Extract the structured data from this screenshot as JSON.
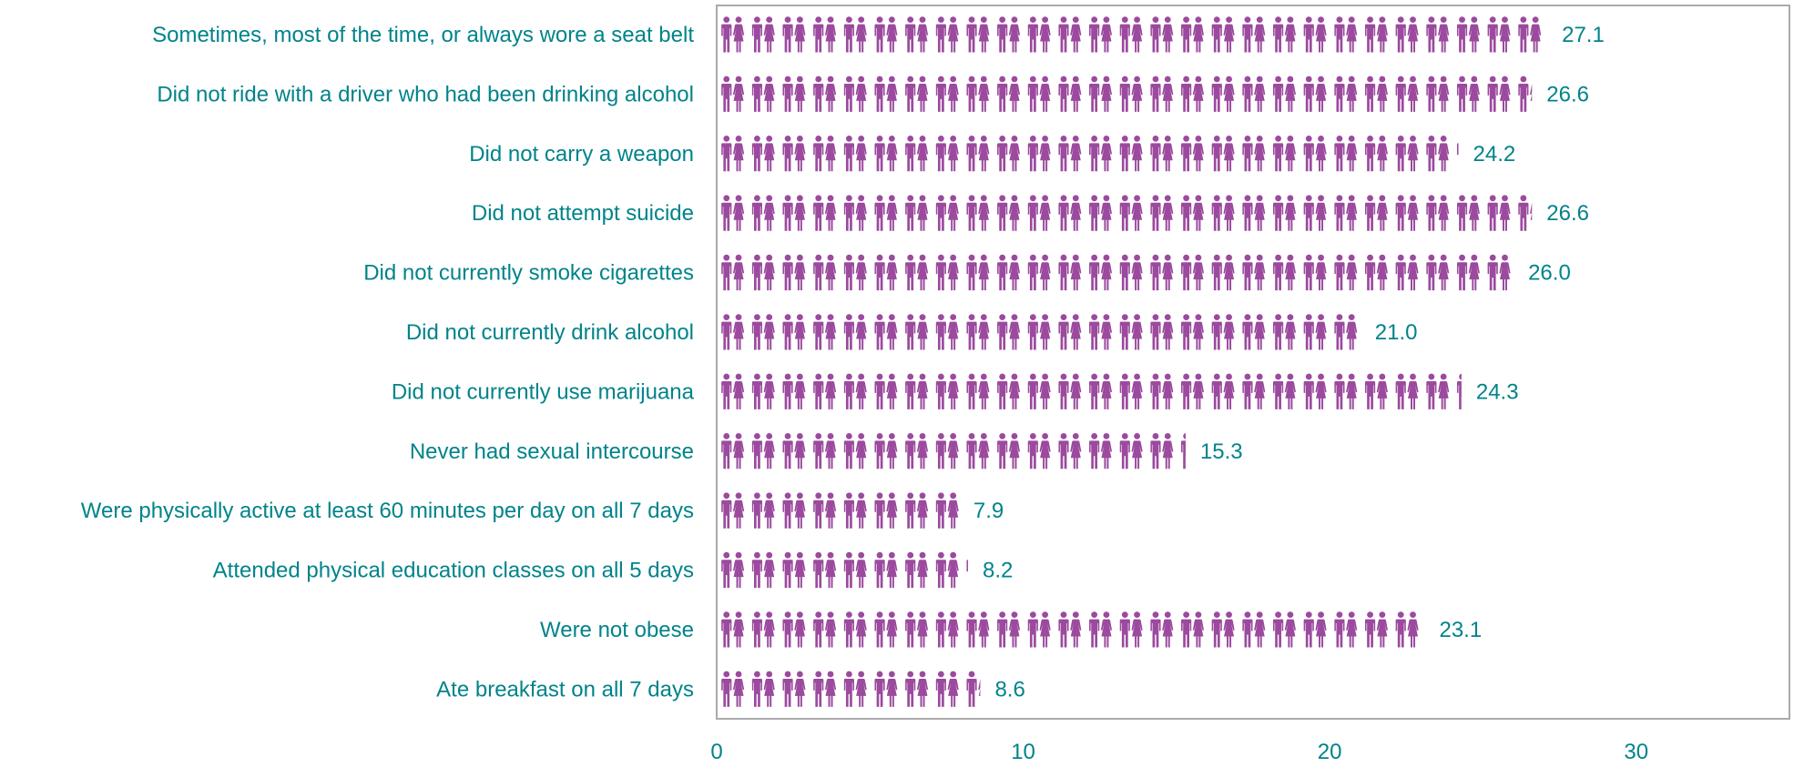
{
  "chart_data": {
    "type": "bar",
    "title": "",
    "xlabel": "",
    "ylabel": "",
    "xlim": [
      0,
      35
    ],
    "x_ticks": [
      0,
      10,
      20,
      30
    ],
    "x_tick_labels": [
      "0",
      "10",
      "20",
      "30"
    ],
    "grid": false,
    "legend": "none",
    "icon": "person-icon",
    "categories": [
      "Sometimes, most of the time, or always wore a seat belt",
      "Did not ride with a driver who had been drinking alcohol",
      "Did not carry a weapon",
      "Did not attempt suicide",
      "Did not currently smoke cigarettes",
      "Did not currently drink alcohol",
      "Did not currently use marijuana",
      "Never had sexual intercourse",
      "Were physically active at least 60 minutes per day on all 7 days",
      "Attended physical education classes on all 5 days",
      "Were not obese",
      "Ate breakfast on all 7 days"
    ],
    "values": [
      27.1,
      26.6,
      24.2,
      26.6,
      26.0,
      21.0,
      24.3,
      15.3,
      7.9,
      8.2,
      23.1,
      8.6
    ],
    "value_labels": [
      "27.1",
      "26.6",
      "24.2",
      "26.6",
      "26.0",
      "21.0",
      "24.3",
      "15.3",
      "7.9",
      "8.2",
      "23.1",
      "8.6"
    ]
  },
  "colors": {
    "label_text": "#00838a",
    "icon_fill": "#9b4a9e",
    "axis_frame": "#aaaaaa"
  }
}
